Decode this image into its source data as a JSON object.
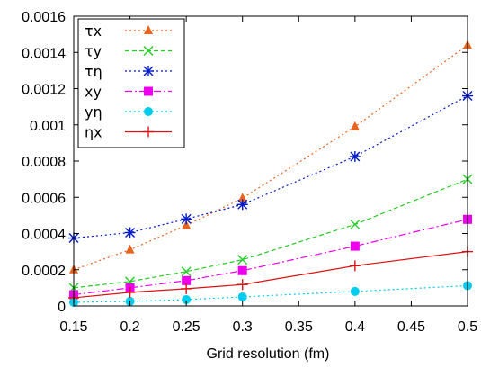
{
  "chart_data": {
    "type": "line",
    "title": "",
    "xlabel": "Grid resolution (fm)",
    "ylabel": "",
    "xlim": [
      0.15,
      0.5
    ],
    "ylim": [
      0,
      0.0016
    ],
    "x_ticks": [
      "0.15",
      "0.2",
      "0.25",
      "0.3",
      "0.35",
      "0.4",
      "0.45",
      "0.5"
    ],
    "x_tick_values": [
      0.15,
      0.2,
      0.25,
      0.3,
      0.35,
      0.4,
      0.45,
      0.5
    ],
    "y_ticks": [
      "0",
      "0.0002",
      "0.0004",
      "0.0006",
      "0.0008",
      "0.001",
      "0.0012",
      "0.0014",
      "0.0016"
    ],
    "y_tick_values": [
      0,
      0.0002,
      0.0004,
      0.0006,
      0.0008,
      0.001,
      0.0012,
      0.0014,
      0.0016
    ],
    "grid": false,
    "legend_position": "top-left",
    "x": [
      0.15,
      0.2,
      0.25,
      0.3,
      0.4,
      0.5
    ],
    "series": [
      {
        "name": "τx",
        "color": "#e8641e",
        "dash": "2,3",
        "marker": "triangle",
        "values": [
          0.0002,
          0.00031,
          0.000445,
          0.000595,
          0.00099,
          0.00144
        ]
      },
      {
        "name": "τy",
        "color": "#22cc22",
        "dash": "5,3",
        "marker": "x",
        "values": [
          0.0001,
          0.000135,
          0.00019,
          0.000255,
          0.00045,
          0.0007
        ]
      },
      {
        "name": "τη",
        "color": "#0018c8",
        "dash": "2,3",
        "marker": "asterisk",
        "values": [
          0.000375,
          0.000405,
          0.00048,
          0.00056,
          0.000825,
          0.00116
        ]
      },
      {
        "name": "xy",
        "color": "#ee00ee",
        "dash": "8,3,2,3",
        "marker": "square",
        "values": [
          6.2e-05,
          0.0001,
          0.00014,
          0.000195,
          0.00033,
          0.000478
        ]
      },
      {
        "name": "yη",
        "color": "#00ccee",
        "dash": "2,3",
        "marker": "circle",
        "values": [
          2e-05,
          2.5e-05,
          3.5e-05,
          5e-05,
          8e-05,
          0.000112
        ]
      },
      {
        "name": "ηx",
        "color": "#dd1111",
        "dash": "",
        "marker": "plus",
        "values": [
          4.5e-05,
          7.5e-05,
          9.5e-05,
          0.000118,
          0.000222,
          0.0003
        ]
      }
    ]
  }
}
